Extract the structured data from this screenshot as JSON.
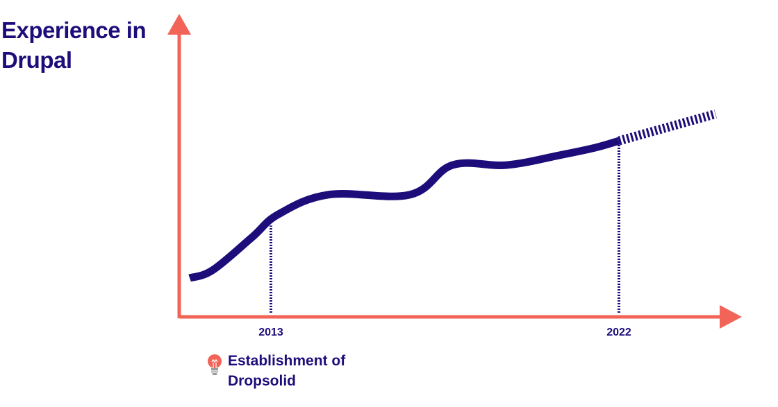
{
  "colors": {
    "axis": "#f26457",
    "series": "#1d0d7b",
    "text": "#1d0d7b"
  },
  "chart_data": {
    "type": "line",
    "title": "",
    "ylabel": "Experience in Drupal",
    "xlabel": "",
    "x_ticks": [
      "2013",
      "2022"
    ],
    "axis_arrows": true,
    "grid": false,
    "series": [
      {
        "style": "solid",
        "points": [
          {
            "x": 2010.9,
            "y": 0.0
          },
          {
            "x": 2011.5,
            "y": 0.12
          },
          {
            "x": 2012.5,
            "y": 0.6
          },
          {
            "x": 2013.2,
            "y": 0.95
          },
          {
            "x": 2014.5,
            "y": 1.24
          },
          {
            "x": 2016.6,
            "y": 1.24
          },
          {
            "x": 2017.7,
            "y": 1.68
          },
          {
            "x": 2019.1,
            "y": 1.68
          },
          {
            "x": 2020.5,
            "y": 1.83
          },
          {
            "x": 2021.4,
            "y": 1.94
          },
          {
            "x": 2022.0,
            "y": 2.04
          }
        ]
      },
      {
        "style": "dashed",
        "points": [
          {
            "x": 2022.0,
            "y": 2.04
          },
          {
            "x": 2024.5,
            "y": 2.44
          }
        ]
      }
    ],
    "markers": [
      {
        "x": 2013,
        "y": 0.78,
        "style": "dotted"
      },
      {
        "x": 2022,
        "y": 2.04,
        "style": "dotted"
      }
    ],
    "annotation": {
      "icon": "lightbulb-icon",
      "text": "Establishment of Dropsolid"
    }
  }
}
